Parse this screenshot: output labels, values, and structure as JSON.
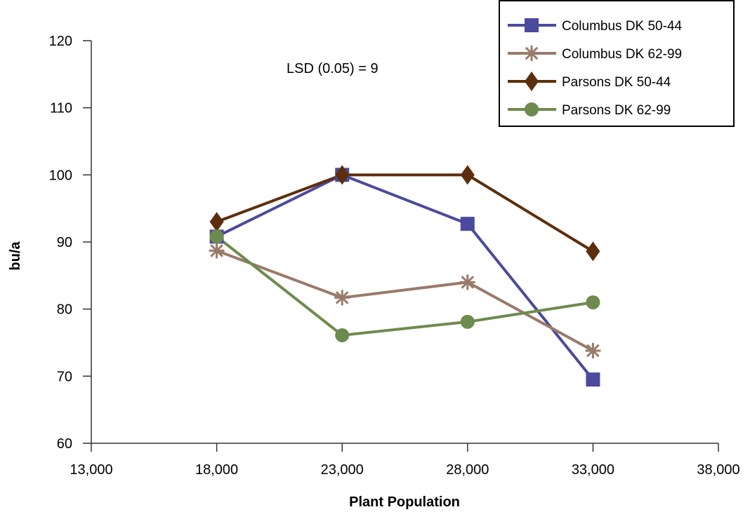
{
  "chart_data": {
    "type": "line",
    "title": "",
    "xlabel": "Plant Population",
    "ylabel": "bu/a",
    "xlim": [
      13000,
      38000
    ],
    "ylim": [
      60,
      120
    ],
    "x_ticks": [
      13000,
      18000,
      23000,
      28000,
      33000,
      38000
    ],
    "x_tick_labels": [
      "13,000",
      "18,000",
      "23,000",
      "28,000",
      "33,000",
      "38,000"
    ],
    "y_ticks": [
      60,
      70,
      80,
      90,
      100,
      110,
      120
    ],
    "y_tick_labels": [
      "60",
      "70",
      "80",
      "90",
      "100",
      "110",
      "120"
    ],
    "grid": false,
    "legend_position": "top-right",
    "annotation": "LSD (0.05) = 9",
    "series": [
      {
        "name": "Columbus DK 50-44",
        "color": "#4b4a9c",
        "marker": "square",
        "x": [
          18000,
          23000,
          28000,
          33000
        ],
        "y": [
          90.8,
          100,
          92.7,
          69.5
        ]
      },
      {
        "name": "Columbus DK 62-99",
        "color": "#9a7a6a",
        "marker": "star",
        "x": [
          18000,
          23000,
          28000,
          33000
        ],
        "y": [
          88.7,
          81.7,
          84,
          73.8
        ]
      },
      {
        "name": "Parsons DK 50-44",
        "color": "#5c2e0c",
        "marker": "diamond",
        "x": [
          18000,
          23000,
          28000,
          33000
        ],
        "y": [
          93,
          100,
          100,
          88.6
        ]
      },
      {
        "name": "Parsons DK 62-99",
        "color": "#6d8b4e",
        "marker": "circle",
        "x": [
          18000,
          23000,
          28000,
          33000
        ],
        "y": [
          90.8,
          76.1,
          78.1,
          81
        ]
      }
    ]
  }
}
